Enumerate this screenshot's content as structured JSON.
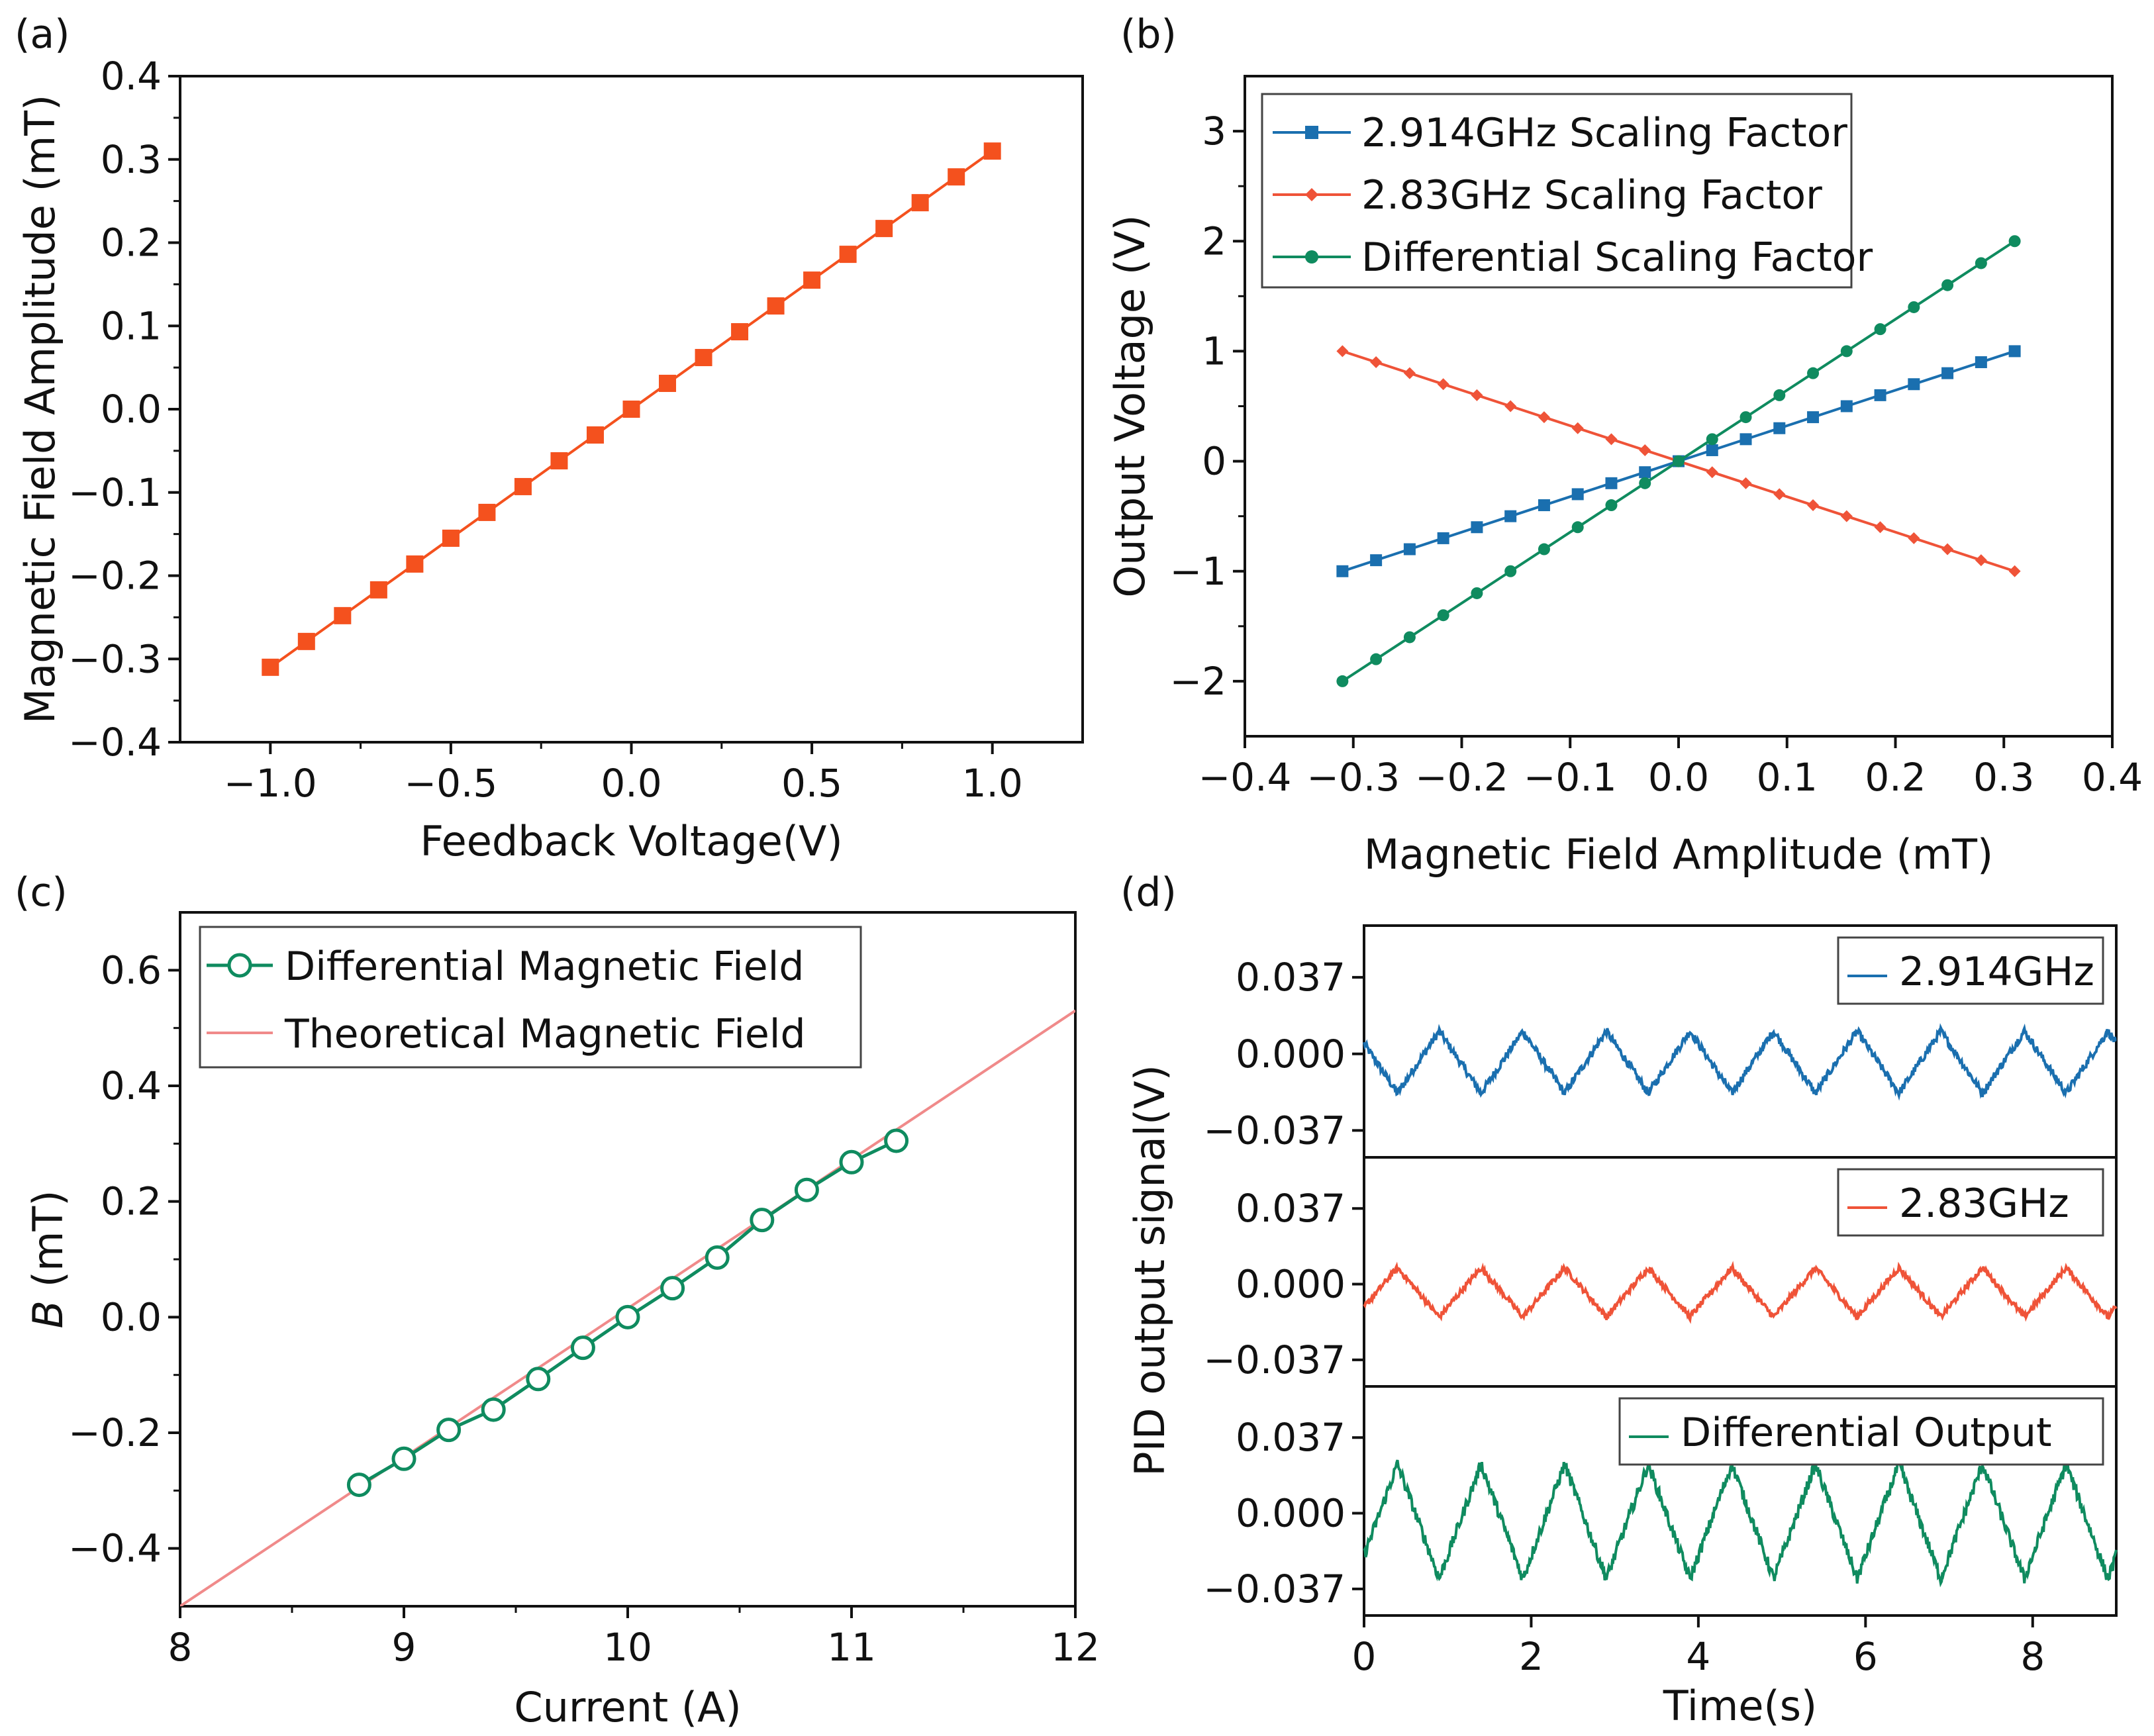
{
  "colors": {
    "orange": "#f4511e",
    "blue": "#1a6faf",
    "red": "#ef5338",
    "green": "#0f8b5f",
    "theory": "#f08a8a",
    "axis": "#111111"
  },
  "chart_data": [
    {
      "id": "a",
      "panel_label": "(a)",
      "type": "line",
      "title": "",
      "xlabel": "Feedback Voltage(V)",
      "ylabel": "Magnetic Field Amplitude (mT)",
      "xlim": [
        -1.25,
        1.25
      ],
      "ylim": [
        -0.4,
        0.4
      ],
      "xticks": [
        -1.0,
        -0.5,
        0.0,
        0.5,
        1.0
      ],
      "xtick_labels": [
        "−1.0",
        "−0.5",
        "0.0",
        "0.5",
        "1.0"
      ],
      "yticks": [
        -0.4,
        -0.3,
        -0.2,
        -0.1,
        0.0,
        0.1,
        0.2,
        0.3,
        0.4
      ],
      "ytick_labels": [
        "−0.4",
        "−0.3",
        "−0.2",
        "−0.1",
        "0.0",
        "0.1",
        "0.2",
        "0.3",
        "0.4"
      ],
      "series": [
        {
          "name": "Magnetic Field Amplitude",
          "marker": "square",
          "color": "#f4511e",
          "x": [
            -1.0,
            -0.9,
            -0.8,
            -0.7,
            -0.6,
            -0.5,
            -0.4,
            -0.3,
            -0.2,
            -0.1,
            0.0,
            0.1,
            0.2,
            0.3,
            0.4,
            0.5,
            0.6,
            0.7,
            0.8,
            0.9,
            1.0
          ],
          "y": [
            -0.31,
            -0.279,
            -0.248,
            -0.217,
            -0.186,
            -0.155,
            -0.124,
            -0.093,
            -0.062,
            -0.031,
            0.0,
            0.031,
            0.062,
            0.093,
            0.124,
            0.155,
            0.186,
            0.217,
            0.248,
            0.279,
            0.31
          ]
        }
      ]
    },
    {
      "id": "b",
      "panel_label": "(b)",
      "type": "line",
      "title": "",
      "xlabel": "Magnetic Field Amplitude (mT)",
      "ylabel": "Output Voltage (V)",
      "xlim": [
        -0.4,
        0.4
      ],
      "ylim": [
        -2.5,
        3.5
      ],
      "xticks": [
        -0.4,
        -0.3,
        -0.2,
        -0.1,
        0.0,
        0.1,
        0.2,
        0.3,
        0.4
      ],
      "xtick_labels": [
        "−0.4",
        "−0.3",
        "−0.2",
        "−0.1",
        "0.0",
        "0.1",
        "0.2",
        "0.3",
        "0.4"
      ],
      "yticks": [
        -2,
        -1,
        0,
        1,
        2,
        3
      ],
      "ytick_labels": [
        "−2",
        "−1",
        "0",
        "1",
        "2",
        "3"
      ],
      "legend_position": "top-left",
      "series": [
        {
          "name": "2.914GHz Scaling Factor",
          "marker": "square",
          "color": "#1a6faf",
          "x": [
            -0.31,
            -0.279,
            -0.248,
            -0.217,
            -0.186,
            -0.155,
            -0.124,
            -0.093,
            -0.062,
            -0.031,
            0.0,
            0.031,
            0.062,
            0.093,
            0.124,
            0.155,
            0.186,
            0.217,
            0.248,
            0.279,
            0.31
          ],
          "y": [
            -1.0,
            -0.9,
            -0.8,
            -0.7,
            -0.6,
            -0.5,
            -0.4,
            -0.3,
            -0.2,
            -0.1,
            0.0,
            0.1,
            0.2,
            0.3,
            0.4,
            0.5,
            0.6,
            0.7,
            0.8,
            0.9,
            1.0
          ]
        },
        {
          "name": "2.83GHz Scaling Factor",
          "marker": "diamond",
          "color": "#ef5338",
          "x": [
            -0.31,
            -0.279,
            -0.248,
            -0.217,
            -0.186,
            -0.155,
            -0.124,
            -0.093,
            -0.062,
            -0.031,
            0.0,
            0.031,
            0.062,
            0.093,
            0.124,
            0.155,
            0.186,
            0.217,
            0.248,
            0.279,
            0.31
          ],
          "y": [
            1.0,
            0.9,
            0.8,
            0.7,
            0.6,
            0.5,
            0.4,
            0.3,
            0.2,
            0.1,
            0.0,
            -0.1,
            -0.2,
            -0.3,
            -0.4,
            -0.5,
            -0.6,
            -0.7,
            -0.8,
            -0.9,
            -1.0
          ]
        },
        {
          "name": "Differential Scaling Factor",
          "marker": "circle",
          "color": "#0f8b5f",
          "x": [
            -0.31,
            -0.279,
            -0.248,
            -0.217,
            -0.186,
            -0.155,
            -0.124,
            -0.093,
            -0.062,
            -0.031,
            0.0,
            0.031,
            0.062,
            0.093,
            0.124,
            0.155,
            0.186,
            0.217,
            0.248,
            0.279,
            0.31
          ],
          "y": [
            -2.0,
            -1.8,
            -1.6,
            -1.4,
            -1.2,
            -1.0,
            -0.8,
            -0.6,
            -0.4,
            -0.2,
            0.0,
            0.2,
            0.4,
            0.6,
            0.8,
            1.0,
            1.2,
            1.4,
            1.6,
            1.8,
            2.0
          ]
        }
      ]
    },
    {
      "id": "c",
      "panel_label": "(c)",
      "type": "line",
      "title": "",
      "xlabel": "Current (A)",
      "ylabel_symbol": "B",
      "ylabel": " (mT)",
      "xlim": [
        8,
        12
      ],
      "ylim": [
        -0.5,
        0.7
      ],
      "xticks": [
        8,
        9,
        10,
        11,
        12
      ],
      "xtick_labels": [
        "8",
        "9",
        "10",
        "11",
        "12"
      ],
      "yticks": [
        -0.4,
        -0.2,
        0.0,
        0.2,
        0.4,
        0.6
      ],
      "ytick_labels": [
        "−0.4",
        "−0.2",
        "0.0",
        "0.2",
        "0.4",
        "0.6"
      ],
      "legend_position": "top-left",
      "series": [
        {
          "name": "Differential Magnetic Field",
          "marker": "open-circle",
          "color": "#0f8b5f",
          "x": [
            8.8,
            9.0,
            9.2,
            9.4,
            9.6,
            9.8,
            10.0,
            10.2,
            10.4,
            10.6,
            10.8,
            11.0,
            11.2
          ],
          "y": [
            -0.29,
            -0.245,
            -0.195,
            -0.16,
            -0.107,
            -0.053,
            0.0,
            0.05,
            0.103,
            0.168,
            0.22,
            0.268,
            0.305
          ]
        },
        {
          "name": "Theoretical Magnetic Field",
          "marker": "none",
          "color": "#f08a8a",
          "x": [
            8.0,
            12.0
          ],
          "y": [
            -0.5,
            0.53
          ]
        }
      ]
    },
    {
      "id": "d",
      "panel_label": "(d)",
      "type": "line",
      "title": "",
      "xlabel": "Time(s)",
      "ylabel": "PID output signal(V)",
      "xlim": [
        0,
        9
      ],
      "xticks": [
        0,
        2,
        4,
        6,
        8
      ],
      "xtick_labels": [
        "0",
        "2",
        "4",
        "6",
        "8"
      ],
      "subplots": [
        {
          "legend": "2.914GHz",
          "color": "#1a6faf",
          "ylim": [
            -0.05,
            0.062
          ],
          "yticks": [
            -0.037,
            0.0,
            0.037
          ],
          "ytick_labels": [
            "−0.037",
            "0.000",
            "0.037"
          ],
          "wave": {
            "offset": -0.004,
            "amplitude": 0.015,
            "period_s": 1.0,
            "first_peak_s": 0.9,
            "noise": 0.002
          }
        },
        {
          "legend": "2.83GHz",
          "color": "#ef5338",
          "ylim": [
            -0.05,
            0.062
          ],
          "yticks": [
            -0.037,
            0.0,
            0.037
          ],
          "ytick_labels": [
            "−0.037",
            "0.000",
            "0.037"
          ],
          "wave": {
            "offset": -0.004,
            "amplitude": 0.012,
            "period_s": 1.0,
            "first_peak_s": 0.4,
            "noise": 0.0015
          }
        },
        {
          "legend": "Differential Output",
          "color": "#0f8b5f",
          "ylim": [
            -0.05,
            0.062
          ],
          "yticks": [
            -0.037,
            0.0,
            0.037
          ],
          "ytick_labels": [
            "−0.037",
            "0.000",
            "0.037"
          ],
          "wave": {
            "offset": -0.004,
            "amplitude": 0.028,
            "period_s": 1.0,
            "first_peak_s": 0.4,
            "noise": 0.003
          }
        }
      ]
    }
  ]
}
